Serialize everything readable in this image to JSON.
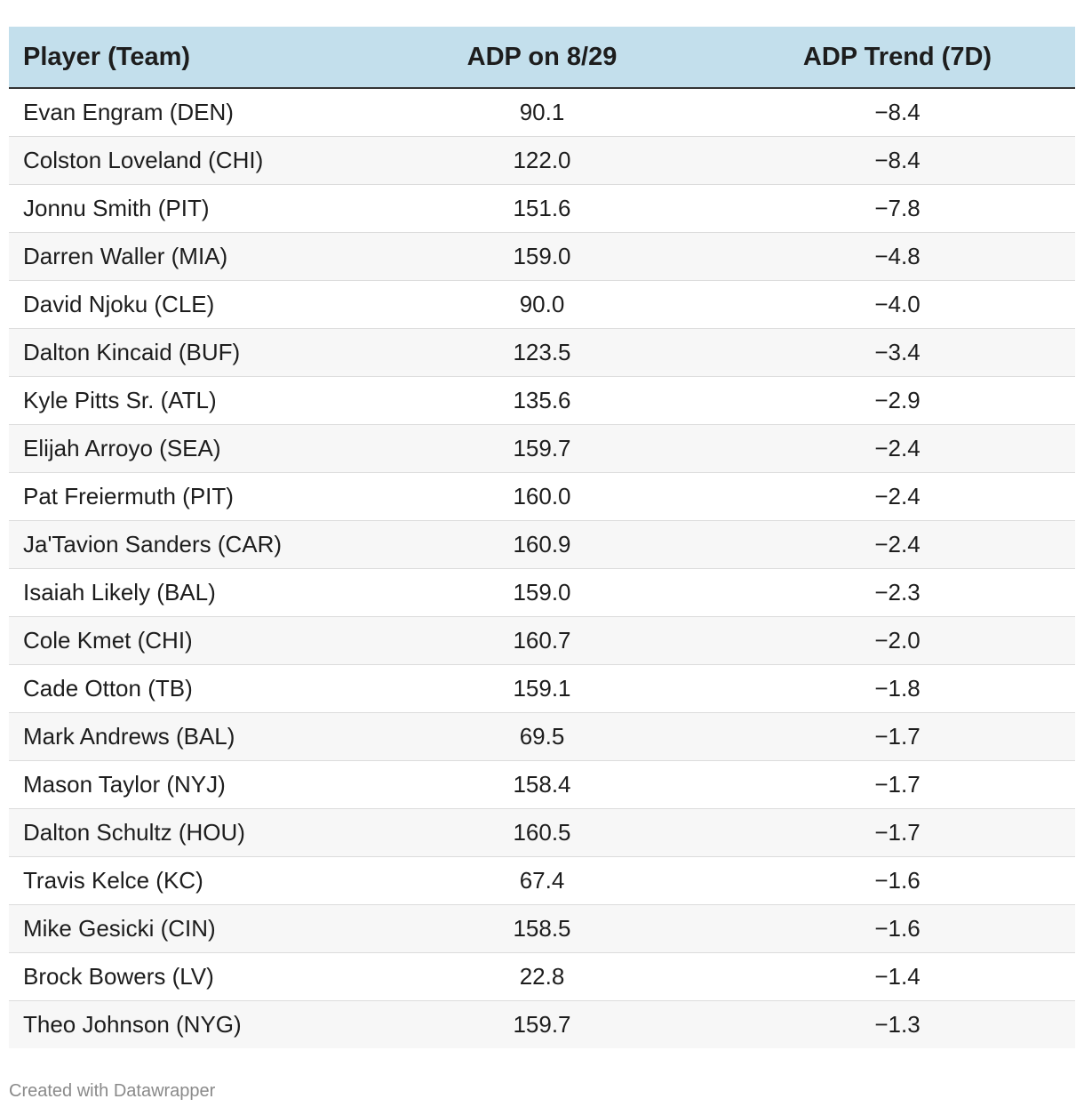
{
  "chart_data": {
    "type": "table",
    "columns": [
      "Player (Team)",
      "ADP on 8/29",
      "ADP Trend (7D)"
    ],
    "rows": [
      [
        "Evan Engram (DEN)",
        "90.1",
        "−8.4"
      ],
      [
        "Colston Loveland (CHI)",
        "122.0",
        "−8.4"
      ],
      [
        "Jonnu Smith (PIT)",
        "151.6",
        "−7.8"
      ],
      [
        "Darren Waller (MIA)",
        "159.0",
        "−4.8"
      ],
      [
        "David Njoku (CLE)",
        "90.0",
        "−4.0"
      ],
      [
        "Dalton Kincaid (BUF)",
        "123.5",
        "−3.4"
      ],
      [
        "Kyle Pitts Sr. (ATL)",
        "135.6",
        "−2.9"
      ],
      [
        "Elijah Arroyo (SEA)",
        "159.7",
        "−2.4"
      ],
      [
        "Pat Freiermuth (PIT)",
        "160.0",
        "−2.4"
      ],
      [
        "Ja'Tavion Sanders (CAR)",
        "160.9",
        "−2.4"
      ],
      [
        "Isaiah Likely (BAL)",
        "159.0",
        "−2.3"
      ],
      [
        "Cole Kmet (CHI)",
        "160.7",
        "−2.0"
      ],
      [
        "Cade Otton (TB)",
        "159.1",
        "−1.8"
      ],
      [
        "Mark Andrews (BAL)",
        "69.5",
        "−1.7"
      ],
      [
        "Mason Taylor (NYJ)",
        "158.4",
        "−1.7"
      ],
      [
        "Dalton Schultz (HOU)",
        "160.5",
        "−1.7"
      ],
      [
        "Travis Kelce (KC)",
        "67.4",
        "−1.6"
      ],
      [
        "Mike Gesicki (CIN)",
        "158.5",
        "−1.6"
      ],
      [
        "Brock Bowers (LV)",
        "22.8",
        "−1.4"
      ],
      [
        "Theo Johnson (NYG)",
        "159.7",
        "−1.3"
      ]
    ],
    "header_color": "#c3dfec",
    "stripe_color": "#f7f7f7"
  },
  "footer": {
    "credit": "Created with Datawrapper"
  }
}
